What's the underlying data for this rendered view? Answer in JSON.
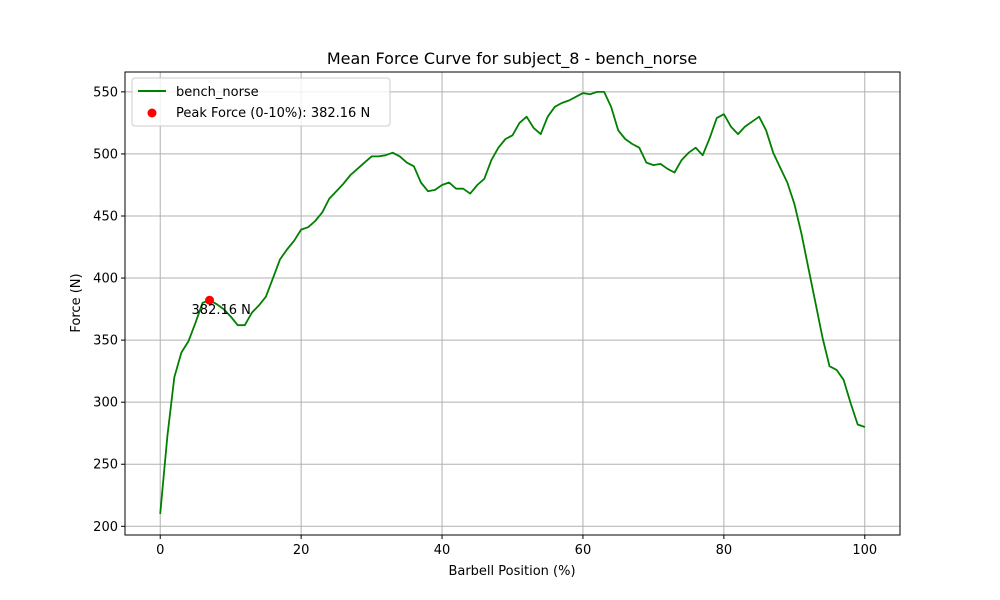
{
  "chart_data": {
    "type": "line",
    "title": "Mean Force Curve for subject_8 - bench_norse",
    "xlabel": "Barbell Position (%)",
    "ylabel": "Force (N)",
    "xlim": [
      -5,
      105
    ],
    "ylim": [
      193,
      566
    ],
    "xticks": [
      0,
      20,
      40,
      60,
      80,
      100
    ],
    "yticks": [
      200,
      250,
      300,
      350,
      400,
      450,
      500,
      550
    ],
    "grid": true,
    "legend_position": "top-left",
    "series": [
      {
        "name": "bench_norse",
        "color": "#008000",
        "x": [
          0,
          1,
          2,
          3,
          4,
          5,
          6,
          7,
          8,
          9,
          10,
          11,
          12,
          13,
          14,
          15,
          16,
          17,
          18,
          19,
          20,
          21,
          22,
          23,
          24,
          25,
          26,
          27,
          28,
          29,
          30,
          31,
          32,
          33,
          34,
          35,
          36,
          37,
          38,
          39,
          40,
          41,
          42,
          43,
          44,
          45,
          46,
          47,
          48,
          49,
          50,
          51,
          52,
          53,
          54,
          55,
          56,
          57,
          58,
          59,
          60,
          61,
          62,
          63,
          64,
          65,
          66,
          67,
          68,
          69,
          70,
          71,
          72,
          73,
          74,
          75,
          76,
          77,
          78,
          79,
          80,
          81,
          82,
          83,
          84,
          85,
          86,
          87,
          88,
          89,
          90,
          91,
          92,
          93,
          94,
          95,
          96,
          97,
          98,
          99,
          100
        ],
        "y": [
          210,
          272,
          320,
          340,
          349,
          364,
          380,
          382,
          379,
          375,
          369,
          362,
          362,
          372,
          378,
          385,
          400,
          415,
          423,
          430,
          439,
          441,
          446,
          453,
          464,
          470,
          476,
          483,
          488,
          493,
          498,
          498,
          499,
          501,
          498,
          493,
          490,
          477,
          470,
          471,
          475,
          477,
          472,
          472,
          468,
          475,
          480,
          495,
          505,
          512,
          515,
          525,
          530,
          521,
          516,
          530,
          538,
          541,
          543,
          546,
          549,
          548,
          550,
          550,
          538,
          519,
          512,
          508,
          505,
          493,
          491,
          492,
          488,
          485,
          495,
          501,
          505,
          499,
          513,
          529,
          532,
          522,
          516,
          522,
          526,
          530,
          519,
          501,
          489,
          477,
          460,
          436,
          408,
          380,
          352,
          329,
          326,
          318,
          299,
          282,
          280
        ]
      }
    ],
    "peak": {
      "label": "Peak Force (0-10%): 382.16 N",
      "annotation": "382.16 N",
      "x": 7,
      "y": 382.16,
      "color": "#ff0000"
    }
  }
}
